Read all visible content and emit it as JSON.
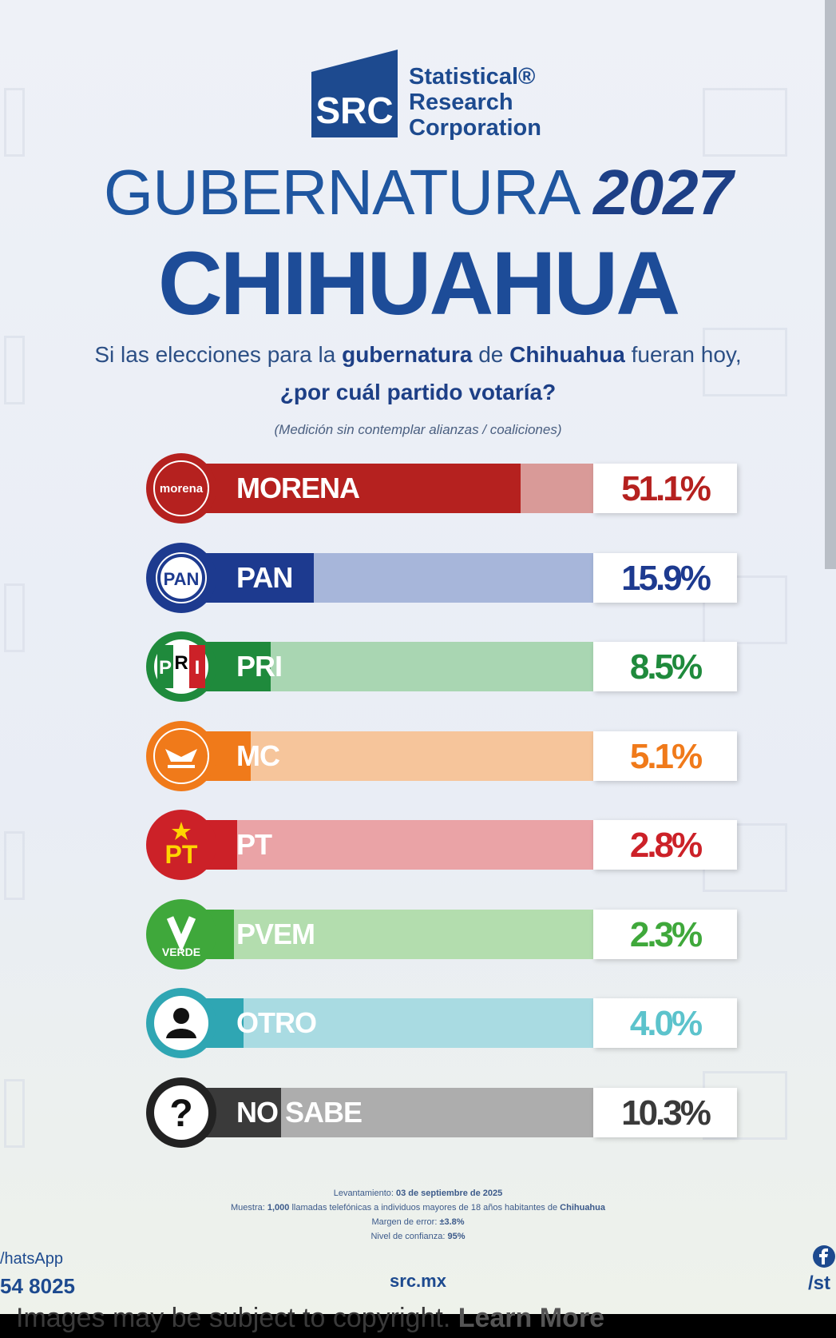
{
  "logo": {
    "mark_text": "SRC",
    "name_lines": [
      "Statistical®",
      "Research",
      "Corporation"
    ]
  },
  "title": {
    "line1_prefix": "GUBERNATURA",
    "line1_year": "2027",
    "line2": "CHIHUAHUA"
  },
  "question": {
    "part1": "Si las elecciones para la ",
    "bold1": "gubernatura",
    "part2": " de ",
    "bold2": "Chihuahua",
    "part3": " fueran hoy,",
    "line2": "¿por cuál partido votaría?",
    "note": "(Medición sin contemplar alianzas / coaliciones)"
  },
  "chart_data": {
    "type": "bar",
    "orientation": "horizontal",
    "categories": [
      "MORENA",
      "PAN",
      "PRI",
      "MC",
      "PT",
      "PVEM",
      "OTRO",
      "NO SABE"
    ],
    "values": [
      51.1,
      15.9,
      8.5,
      5.1,
      2.8,
      2.3,
      4.0,
      10.3
    ],
    "value_labels": [
      "51.1%",
      "15.9%",
      "8.5%",
      "5.1%",
      "2.8%",
      "2.3%",
      "4.0%",
      "10.3%"
    ],
    "colors": [
      "#b5211f",
      "#1d3a8f",
      "#1f8a3c",
      "#f07a1a",
      "#cc2128",
      "#3fa83b",
      "#2fa6b3",
      "#3a3a3a"
    ],
    "light_colors": [
      "#d99a98",
      "#a7b6da",
      "#a9d6b2",
      "#f6c59b",
      "#eaa3a6",
      "#b3ddae",
      "#a9dbe2",
      "#adadad"
    ],
    "value_colors": [
      "#b5211f",
      "#1d3a8f",
      "#1f8a3c",
      "#f07a1a",
      "#cc2128",
      "#3fa83b",
      "#5cc3cc",
      "#3a3a3a"
    ],
    "icons": [
      "morena-logo-icon",
      "pan-logo-icon",
      "pri-logo-icon",
      "mc-logo-icon",
      "pt-logo-icon",
      "verde-logo-icon",
      "person-icon",
      "question-mark-icon"
    ],
    "xlim": [
      0,
      70
    ]
  },
  "badges": {
    "morena": "morena",
    "pan": "PAN",
    "pri_letters": [
      "P",
      "R",
      "I"
    ],
    "pt": "PT",
    "verde": "VERDE",
    "nosabe": "?"
  },
  "footer": {
    "fecha_label": "Levantamiento: ",
    "fecha": "03 de septiembre de 2025",
    "muestra_label": "Muestra: ",
    "muestra": "1,000",
    "muestra_text": " llamadas telefónicas a individuos mayores de 18 años habitantes de ",
    "muestra_place": "Chihuahua",
    "margen_label": "Margen de error: ",
    "margen": "±3.8%",
    "nivel_label": "Nivel de confianza: ",
    "nivel": "95%",
    "website": "src.mx",
    "whatsapp_label": "/hatsApp",
    "whatsapp_number": "54 8025",
    "facebook_handle": "/st"
  },
  "copyright_notice": {
    "text": "Images may be subject to copyright. ",
    "link": "Learn More"
  }
}
